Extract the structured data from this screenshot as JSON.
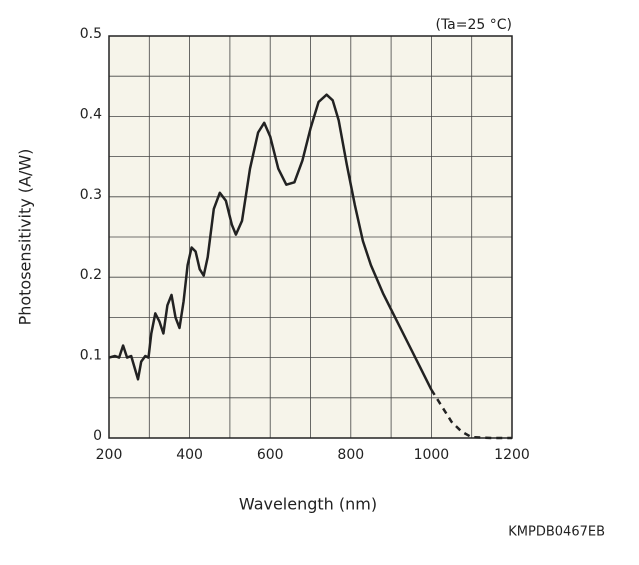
{
  "chart_data": {
    "type": "line",
    "annotation": "(Ta=25 °C)",
    "y_label": "Photosensitivity (A/W)",
    "x_label": "Wavelength (nm)",
    "code": "KMPDB0467EB",
    "x": [
      200,
      215,
      225,
      235,
      245,
      255,
      262,
      272,
      280,
      290,
      298,
      305,
      315,
      325,
      335,
      345,
      355,
      365,
      375,
      385,
      395,
      405,
      415,
      425,
      435,
      445,
      460,
      475,
      490,
      505,
      515,
      530,
      550,
      570,
      585,
      600,
      620,
      640,
      660,
      680,
      700,
      720,
      740,
      755,
      770,
      790,
      810,
      830,
      850,
      880,
      910,
      940,
      970,
      1000,
      1025,
      1050,
      1075,
      1100,
      1150,
      1200
    ],
    "series": [
      {
        "color": "#222222",
        "style": "solid",
        "values": [
          0.1,
          0.102,
          0.1,
          0.115,
          0.1,
          0.102,
          0.09,
          0.073,
          0.095,
          0.102,
          0.1,
          0.13,
          0.155,
          0.145,
          0.13,
          0.165,
          0.178,
          0.15,
          0.137,
          0.17,
          0.215,
          0.237,
          0.232,
          0.21,
          0.202,
          0.225,
          0.285,
          0.305,
          0.295,
          0.265,
          0.253,
          0.27,
          0.335,
          0.38,
          0.392,
          0.375,
          0.335,
          0.315,
          0.318,
          0.345,
          0.385,
          0.418,
          0.427,
          0.42,
          0.395,
          0.34,
          0.29,
          0.245,
          0.215,
          0.18,
          0.15,
          0.12,
          0.09,
          0.06,
          null,
          null,
          null,
          null,
          null,
          null
        ]
      },
      {
        "color": "#222222",
        "style": "dashed",
        "values": [
          null,
          null,
          null,
          null,
          null,
          null,
          null,
          null,
          null,
          null,
          null,
          null,
          null,
          null,
          null,
          null,
          null,
          null,
          null,
          null,
          null,
          null,
          null,
          null,
          null,
          null,
          null,
          null,
          null,
          null,
          null,
          null,
          null,
          null,
          null,
          null,
          null,
          null,
          null,
          null,
          null,
          null,
          null,
          null,
          null,
          null,
          null,
          null,
          null,
          null,
          null,
          null,
          null,
          0.06,
          0.04,
          0.02,
          0.008,
          0.001,
          0,
          0
        ]
      }
    ],
    "xlim": [
      200,
      1200
    ],
    "xticks": [
      200,
      400,
      600,
      800,
      1000,
      1200
    ],
    "ylim": [
      0,
      0.5
    ],
    "yticks": [
      0,
      0.1,
      0.2,
      0.3,
      0.4,
      0.5
    ],
    "grid": true,
    "minor_grid": true
  }
}
